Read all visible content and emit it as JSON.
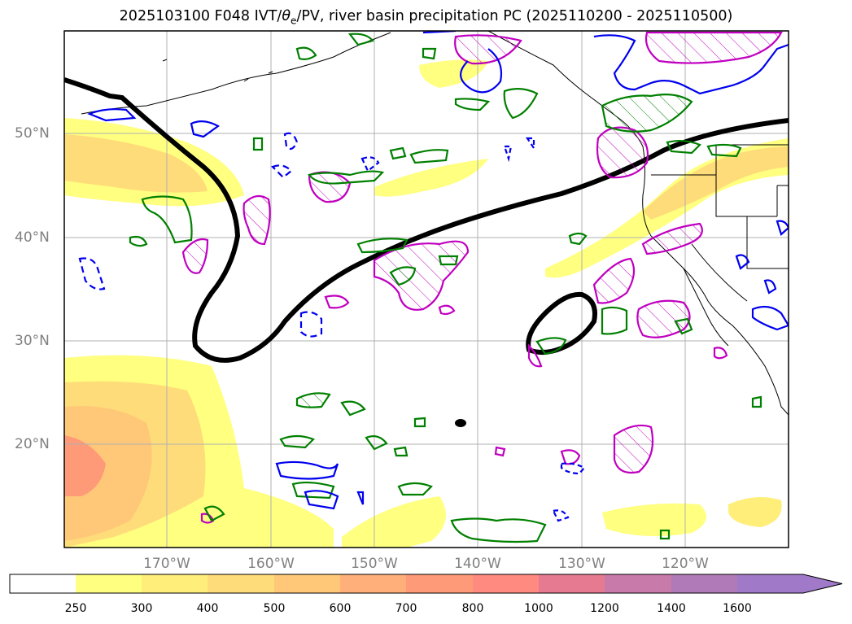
{
  "title_parts": {
    "prefix": "2025103100 F048 IVT/",
    "theta": "θ",
    "sub": "e",
    "suffix": "/PV, river basin precipitation PC (2025110200 - 2025110500)"
  },
  "lat_labels": [
    "50°N",
    "40°N",
    "30°N",
    "20°N"
  ],
  "lon_labels": [
    "170°W",
    "160°W",
    "150°W",
    "140°W",
    "130°W",
    "120°W"
  ],
  "colorbar": {
    "ticks": [
      "250",
      "300",
      "400",
      "500",
      "600",
      "700",
      "800",
      "1000",
      "1200",
      "1400",
      "1600"
    ],
    "colors": [
      "#ffffff",
      "#ffff80",
      "#ffee7a",
      "#ffdc7a",
      "#ffc878",
      "#ffb07a",
      "#ff9a78",
      "#ff8a80",
      "#e67a90",
      "#c87aaa",
      "#b07ab8",
      "#a07ac8"
    ]
  }
}
